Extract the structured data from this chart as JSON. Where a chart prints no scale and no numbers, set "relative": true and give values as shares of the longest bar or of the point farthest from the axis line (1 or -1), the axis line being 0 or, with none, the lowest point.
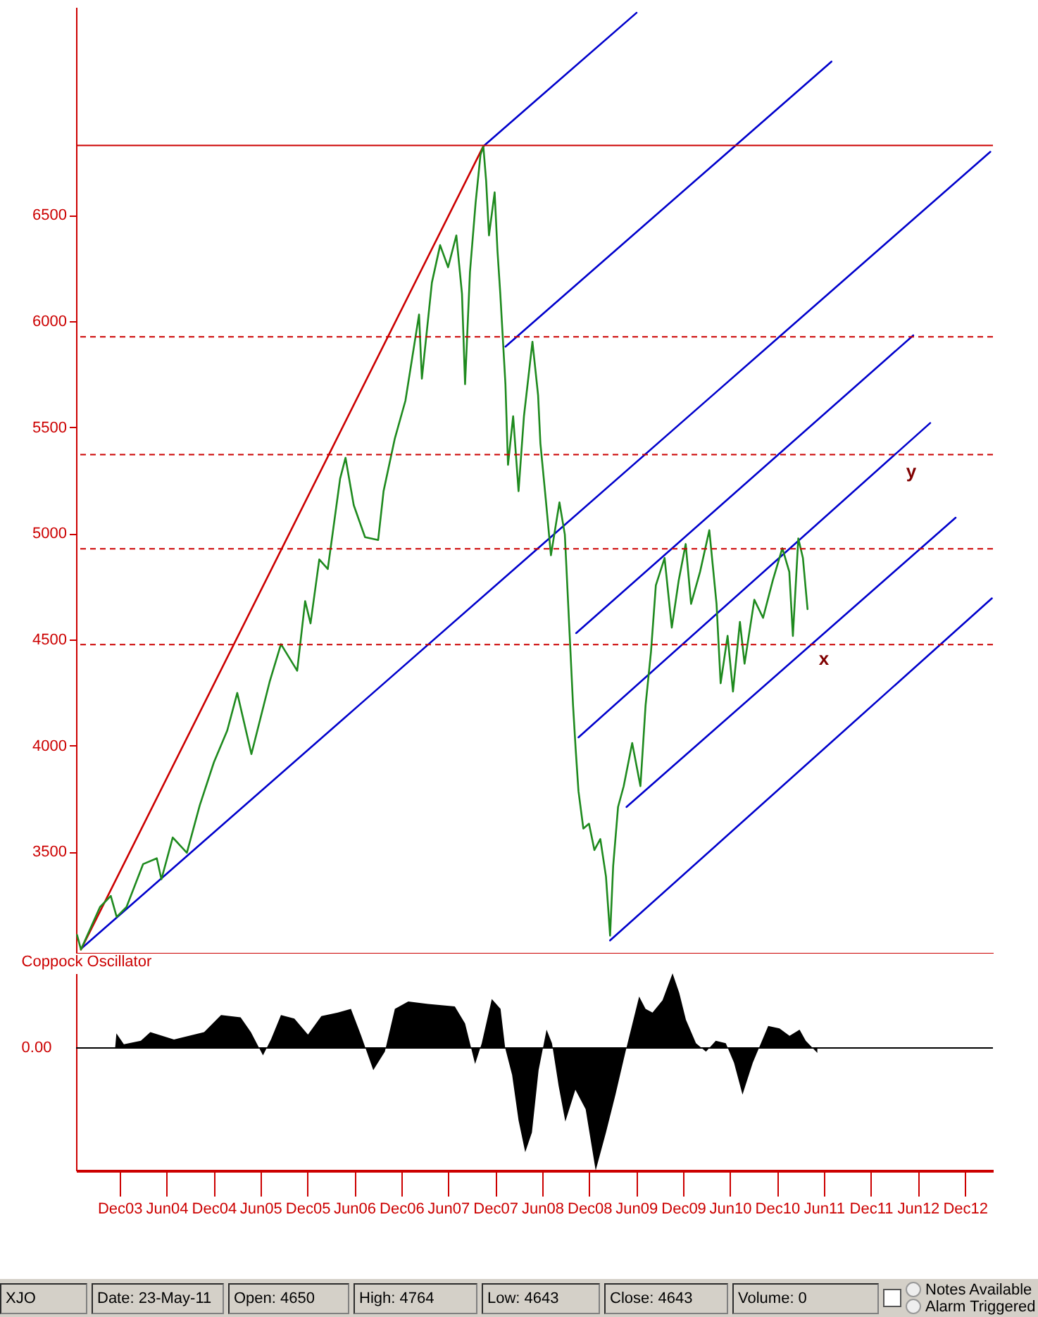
{
  "chart_data": [
    {
      "type": "line",
      "xlim": [
        "2003-06-15",
        "2013-03-20"
      ],
      "ylim": [
        3020,
        7480
      ],
      "yticks": [
        3500,
        4000,
        4500,
        5000,
        5500,
        6000,
        6500
      ],
      "tick_labels": "y",
      "series": [
        {
          "type": "line",
          "color": "#1e8a1e",
          "x": [
            "2003-06-19",
            "2003-07-04",
            "2003-09-16",
            "2003-10-28",
            "2003-11-20",
            "2003-12-28",
            "2004-03-02",
            "2004-04-24",
            "2004-05-12",
            "2004-06-25",
            "2004-08-19",
            "2004-10-08",
            "2004-12-02",
            "2005-01-23",
            "2005-03-03",
            "2005-04-27",
            "2005-07-07",
            "2005-08-20",
            "2005-10-22",
            "2005-11-22",
            "2005-12-13",
            "2006-01-16",
            "2006-02-18",
            "2006-04-07",
            "2006-04-28",
            "2006-05-30",
            "2006-07-13",
            "2006-09-02",
            "2006-09-23",
            "2006-11-06",
            "2006-12-17",
            "2007-02-08",
            "2007-02-19",
            "2007-03-30",
            "2007-05-01",
            "2007-06-01",
            "2007-07-03",
            "2007-07-25",
            "2007-08-06",
            "2007-08-25",
            "2007-09-16",
            "2007-10-05",
            "2007-10-16",
            "2007-10-27",
            "2007-11-07",
            "2007-11-29",
            "2007-12-10",
            "2007-12-21",
            "2008-01-10",
            "2008-01-20",
            "2008-02-09",
            "2008-03-01",
            "2008-03-22",
            "2008-04-24",
            "2008-05-16",
            "2008-05-25",
            "2008-06-16",
            "2008-07-05",
            "2008-08-07",
            "2008-08-28",
            "2008-09-19",
            "2008-09-29",
            "2008-10-09",
            "2008-10-20",
            "2008-11-08",
            "2008-11-30",
            "2008-12-21",
            "2009-01-13",
            "2009-02-04",
            "2009-02-20",
            "2009-03-04",
            "2009-03-23",
            "2009-04-14",
            "2009-05-17",
            "2009-06-18",
            "2009-07-08",
            "2009-07-29",
            "2009-08-17",
            "2009-09-20",
            "2009-10-18",
            "2009-11-14",
            "2009-12-11",
            "2010-01-01",
            "2010-02-05",
            "2010-03-13",
            "2010-04-10",
            "2010-04-26",
            "2010-05-23",
            "2010-06-13",
            "2010-07-10",
            "2010-07-28",
            "2010-09-04",
            "2010-10-08",
            "2010-11-15",
            "2010-12-22",
            "2011-01-18",
            "2011-02-01",
            "2011-02-22",
            "2011-03-12",
            "2011-03-30"
          ],
          "values": [
            3108,
            3039,
            3239,
            3292,
            3193,
            3239,
            3442,
            3469,
            3370,
            3567,
            3495,
            3718,
            3921,
            4071,
            4248,
            3960,
            4301,
            4478,
            4353,
            4681,
            4576,
            4877,
            4832,
            5258,
            5356,
            5133,
            4982,
            4969,
            5199,
            5448,
            5625,
            6031,
            5729,
            6182,
            6358,
            6254,
            6404,
            6129,
            5703,
            6231,
            6558,
            6784,
            6824,
            6660,
            6404,
            6607,
            6332,
            6129,
            5703,
            5323,
            5552,
            5199,
            5552,
            5903,
            5651,
            5424,
            5146,
            4897,
            5146,
            4995,
            4441,
            4189,
            3986,
            3786,
            3609,
            3632,
            3508,
            3560,
            3383,
            3105,
            3433,
            3711,
            3809,
            4012,
            3809,
            4189,
            4441,
            4755,
            4884,
            4556,
            4779,
            4950,
            4668,
            4819,
            5015,
            4668,
            4294,
            4517,
            4255,
            4583,
            4386,
            4687,
            4602,
            4779,
            4930,
            4819,
            4517,
            4976,
            4884,
            4643
          ]
        },
        {
          "type": "line",
          "color": "#cc0000",
          "x": [
            "2003-07-04",
            "2007-10-16"
          ],
          "values": [
            3039,
            6824
          ]
        },
        {
          "type": "line",
          "color": "#0000cc",
          "x": [
            "2003-07-05",
            "2013-03-10"
          ],
          "values": [
            3043,
            6798
          ]
        },
        {
          "type": "line",
          "color": "#0000cc",
          "x": [
            "2007-10-16",
            "2009-06-03"
          ],
          "values": [
            6824,
            7453
          ]
        },
        {
          "type": "line",
          "color": "#0000cc",
          "x": [
            "2008-01-10",
            "2011-07-01"
          ],
          "values": [
            5880,
            7223
          ]
        },
        {
          "type": "line",
          "color": "#0000cc",
          "x": [
            "2008-10-11",
            "2012-05-14"
          ],
          "values": [
            4530,
            5933
          ]
        },
        {
          "type": "line",
          "color": "#0000cc",
          "x": [
            "2008-10-20",
            "2012-07-19"
          ],
          "values": [
            4039,
            5520
          ]
        },
        {
          "type": "line",
          "color": "#0000cc",
          "x": [
            "2009-04-25",
            "2012-10-26"
          ],
          "values": [
            3711,
            5074
          ]
        },
        {
          "type": "line",
          "color": "#0000cc",
          "x": [
            "2009-02-20",
            "2013-03-16"
          ],
          "values": [
            3082,
            4694
          ]
        }
      ],
      "ref_lines": [
        {
          "axis": "y",
          "value": 6828,
          "color": "#cc0000",
          "line_style": "solid"
        },
        {
          "axis": "y",
          "value": 5926,
          "color": "#cc0000",
          "line_style": "dashed"
        },
        {
          "axis": "y",
          "value": 5371,
          "color": "#cc0000",
          "line_style": "dashed"
        },
        {
          "axis": "y",
          "value": 4927,
          "color": "#cc0000",
          "line_style": "dashed"
        },
        {
          "axis": "y",
          "value": 4476,
          "color": "#cc0000",
          "line_style": "dashed"
        }
      ],
      "annotations": [
        "y",
        "x"
      ]
    },
    {
      "type": "area",
      "title": "Coppock Oscillator",
      "relative": true,
      "xlim": [
        "2003-06-15",
        "2013-03-20"
      ],
      "tick_labels": "x",
      "xticks": [
        {
          "value": "2003-12",
          "label": "Dec03"
        },
        {
          "value": "2004-06",
          "label": "Jun04"
        },
        {
          "value": "2004-12",
          "label": "Dec04"
        },
        {
          "value": "2005-06",
          "label": "Jun05"
        },
        {
          "value": "2005-12",
          "label": "Dec05"
        },
        {
          "value": "2006-06",
          "label": "Jun06"
        },
        {
          "value": "2006-12",
          "label": "Dec06"
        },
        {
          "value": "2007-06",
          "label": "Jun07"
        },
        {
          "value": "2007-12",
          "label": "Dec07"
        },
        {
          "value": "2008-06",
          "label": "Jun08"
        },
        {
          "value": "2008-12",
          "label": "Dec08"
        },
        {
          "value": "2009-06",
          "label": "Jun09"
        },
        {
          "value": "2009-12",
          "label": "Dec09"
        },
        {
          "value": "2010-06",
          "label": "Jun10"
        },
        {
          "value": "2010-12",
          "label": "Dec10"
        },
        {
          "value": "2011-06",
          "label": "Jun11"
        },
        {
          "value": "2011-12",
          "label": "Dec11"
        },
        {
          "value": "2012-06",
          "label": "Jun12"
        },
        {
          "value": "2012-12",
          "label": "Dec12"
        }
      ],
      "x": [
        "2003-11-14",
        "2003-11-19",
        "2003-12-18",
        "2004-02-22",
        "2004-03-30",
        "2004-06-30",
        "2004-10-25",
        "2004-12-30",
        "2005-03-16",
        "2005-04-25",
        "2005-06-11",
        "2005-07-12",
        "2005-08-20",
        "2005-10-11",
        "2005-12-03",
        "2006-01-24",
        "2006-03-29",
        "2006-05-19",
        "2006-06-28",
        "2006-08-14",
        "2006-09-28",
        "2006-11-06",
        "2006-12-28",
        "2007-03-15",
        "2007-06-27",
        "2007-08-06",
        "2007-09-14",
        "2007-10-10",
        "2007-11-18",
        "2007-12-22",
        "2008-01-09",
        "2008-02-05",
        "2008-03-01",
        "2008-03-27",
        "2008-04-22",
        "2008-05-18",
        "2008-06-18",
        "2008-07-09",
        "2008-08-04",
        "2008-08-30",
        "2008-10-08",
        "2008-11-17",
        "2008-12-26",
        "2009-02-04",
        "2009-03-13",
        "2009-04-21",
        "2009-06-13",
        "2009-07-08",
        "2009-08-04",
        "2009-09-12",
        "2009-10-21",
        "2009-11-16",
        "2009-12-12",
        "2010-01-20",
        "2010-02-28",
        "2010-04-07",
        "2010-05-16",
        "2010-06-17",
        "2010-07-20",
        "2010-08-29",
        "2010-09-24",
        "2010-10-28",
        "2010-12-11",
        "2011-01-19",
        "2011-02-27",
        "2011-03-23",
        "2011-05-07"
      ],
      "series": [
        {
          "color": "#000000",
          "values": [
            0,
            0.12,
            0.03,
            0.06,
            0.13,
            0.07,
            0.13,
            0.27,
            0.25,
            0.13,
            -0.06,
            0.07,
            0.27,
            0.24,
            0.11,
            0.26,
            0.29,
            0.32,
            0.1,
            -0.18,
            -0.03,
            0.32,
            0.38,
            0.36,
            0.34,
            0.2,
            -0.13,
            0.04,
            0.4,
            0.32,
            0,
            -0.22,
            -0.59,
            -0.85,
            -0.69,
            -0.18,
            0.15,
            0.04,
            -0.31,
            -0.6,
            -0.34,
            -0.5,
            -1,
            -0.69,
            -0.38,
            -0.03,
            0.42,
            0.32,
            0.29,
            0.39,
            0.61,
            0.45,
            0.23,
            0.04,
            -0.03,
            0.06,
            0.04,
            -0.12,
            -0.38,
            -0.12,
            0.01,
            0.18,
            0.16,
            0.1,
            0.15,
            0.06,
            -0.04
          ]
        }
      ],
      "annotations": [
        "0.00"
      ]
    },
    {
      "type": "other",
      "annotations": [
        "XJO",
        "Date: 23-May-11",
        "Open: 4650",
        "High: 4764",
        "Low: 4643",
        "Close: 4643",
        "Volume: 0",
        "Notes Available",
        "Alarm Triggered"
      ]
    }
  ]
}
